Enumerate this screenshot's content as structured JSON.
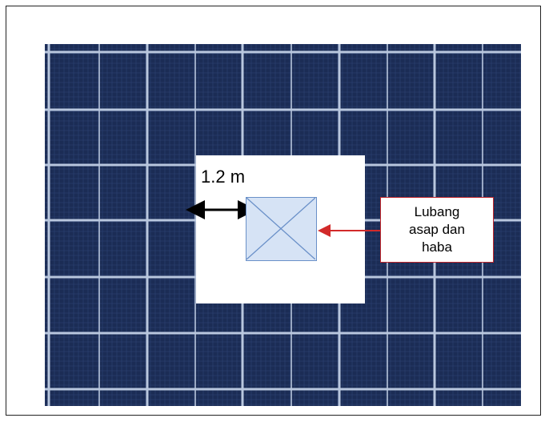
{
  "diagram": {
    "dimension_label": "1.2 m",
    "callout_text": "Lubang\nasap dan\nhaba",
    "colors": {
      "panel_cell": "#1b2c55",
      "panel_grid": "#b9c7de",
      "clearance_zone": "#ffffff",
      "vent_fill": "#d6e3f5",
      "vent_stroke": "#6a90c8",
      "callout_border": "#c0262c",
      "pointer_arrow": "#d22a2a",
      "dimension_arrow": "#000000"
    }
  }
}
